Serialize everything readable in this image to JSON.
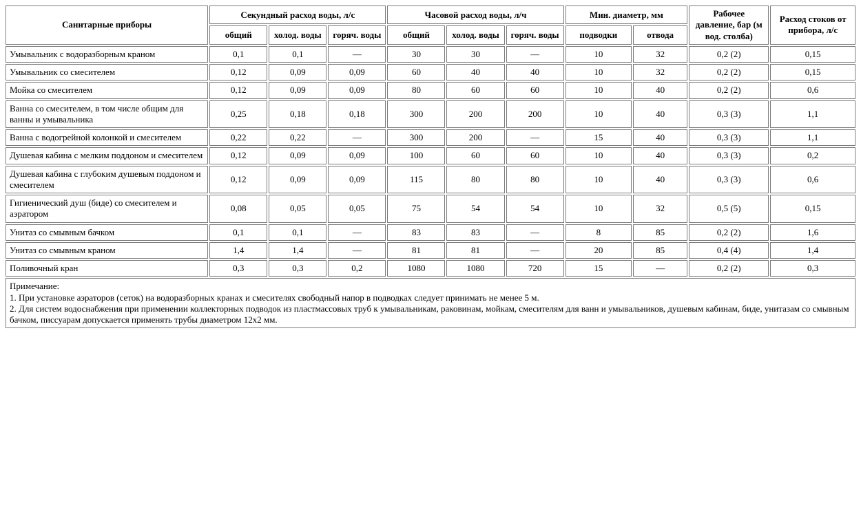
{
  "table": {
    "header": {
      "fixtures": "Санитарные приборы",
      "sec_flow": "Секундный расход воды, л/с",
      "hour_flow": "Часовой расход воды, л/ч",
      "min_dia": "Мин. диаметр, мм",
      "pressure": "Рабочее давление, бар (м вод. столба)",
      "drain": "Расход стоков от прибора, л/с",
      "sub": {
        "total": "общий",
        "cold": "холод. воды",
        "hot": "горяч. воды",
        "supply": "подводки",
        "outlet": "отвода"
      }
    },
    "rows": [
      {
        "label": "Умывальник с водоразборным краном",
        "c": [
          "0,1",
          "0,1",
          "—",
          "30",
          "30",
          "—",
          "10",
          "32",
          "0,2 (2)",
          "0,15"
        ]
      },
      {
        "label": "Умывальник со смесителем",
        "c": [
          "0,12",
          "0,09",
          "0,09",
          "60",
          "40",
          "40",
          "10",
          "32",
          "0,2 (2)",
          "0,15"
        ]
      },
      {
        "label": "Мойка со смесителем",
        "c": [
          "0,12",
          "0,09",
          "0,09",
          "80",
          "60",
          "60",
          "10",
          "40",
          "0,2 (2)",
          "0,6"
        ]
      },
      {
        "label": "Ванна со смесителем, в том числе общим для ванны и умывальника",
        "c": [
          "0,25",
          "0,18",
          "0,18",
          "300",
          "200",
          "200",
          "10",
          "40",
          "0,3 (3)",
          "1,1"
        ]
      },
      {
        "label": "Ванна с водогрейной колонкой и смесителем",
        "c": [
          "0,22",
          "0,22",
          "—",
          "300",
          "200",
          "—",
          "15",
          "40",
          "0,3 (3)",
          "1,1"
        ]
      },
      {
        "label": "Душевая кабина с мелким поддоном и смесителем",
        "c": [
          "0,12",
          "0,09",
          "0,09",
          "100",
          "60",
          "60",
          "10",
          "40",
          "0,3 (3)",
          "0,2"
        ]
      },
      {
        "label": "Душевая кабина с глубоким душевым поддоном и смесителем",
        "c": [
          "0,12",
          "0,09",
          "0,09",
          "115",
          "80",
          "80",
          "10",
          "40",
          "0,3 (3)",
          "0,6"
        ]
      },
      {
        "label": "Гигиенический душ (биде) со смесителем и аэратором",
        "c": [
          "0,08",
          "0,05",
          "0,05",
          "75",
          "54",
          "54",
          "10",
          "32",
          "0,5 (5)",
          "0,15"
        ]
      },
      {
        "label": "Унитаз со смывным бачком",
        "c": [
          "0,1",
          "0,1",
          "—",
          "83",
          "83",
          "—",
          "8",
          "85",
          "0,2 (2)",
          "1,6"
        ]
      },
      {
        "label": "Унитаз со смывным краном",
        "c": [
          "1,4",
          "1,4",
          "—",
          "81",
          "81",
          "—",
          "20",
          "85",
          "0,4 (4)",
          "1,4"
        ]
      },
      {
        "label": "Поливочный кран",
        "c": [
          "0,3",
          "0,3",
          "0,2",
          "1080",
          "1080",
          "720",
          "15",
          "—",
          "0,2 (2)",
          "0,3"
        ]
      }
    ],
    "notes": "Примечание:\n1. При установке аэраторов (сеток) на водоразборных кранах и смесителях свободный напор в подводках следует принимать не менее 5 м.\n2. Для систем водоснабжения при применении коллекторных подводок из пластмассовых труб к умывальникам, раковинам, мойкам, смесителям для ванн и умывальников, душевым кабинам, биде, унитазам со смывным бачком, писсуарам допускается применять трубы диаметром 12х2 мм."
  }
}
